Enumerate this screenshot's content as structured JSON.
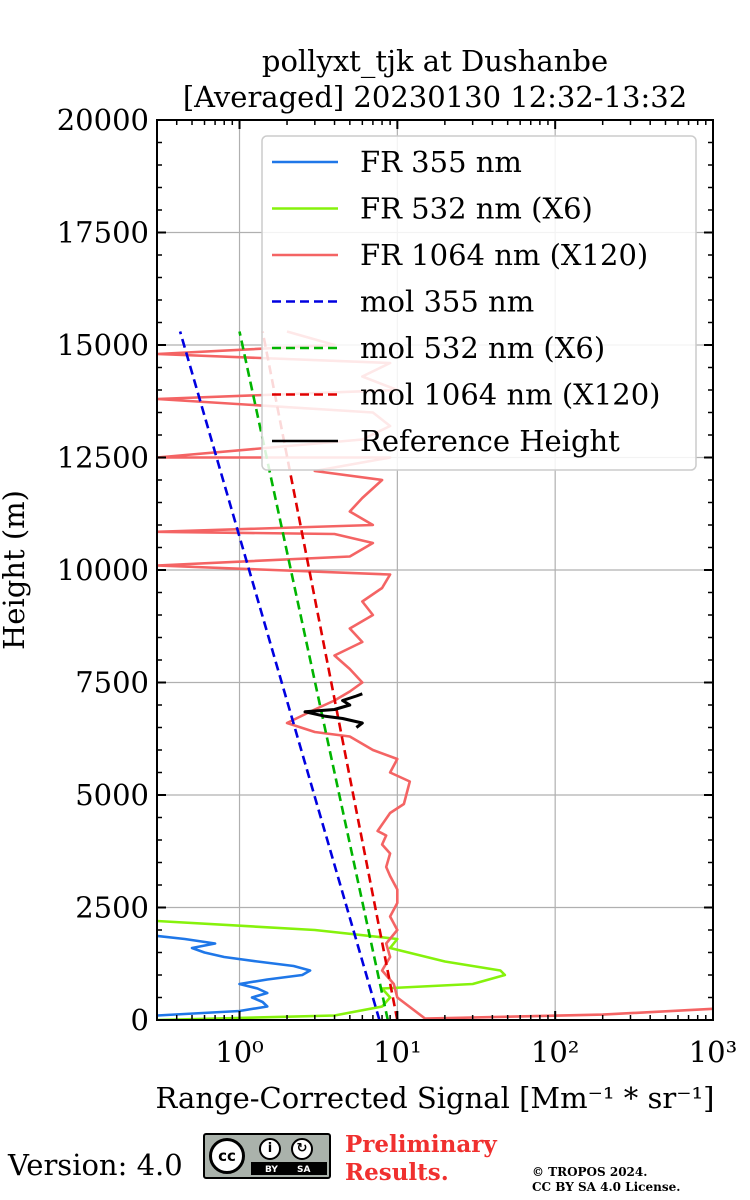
{
  "chart_data": {
    "type": "line",
    "title_line1": "pollyxt_tjk at Dushanbe",
    "title_line2": "[Averaged] 20230130 12:32-13:32",
    "xlabel": "Range-Corrected Signal [Mm⁻¹ * sr⁻¹]",
    "ylabel": "Height (m)",
    "x_scale": "log",
    "xlim": [
      0.3,
      1000
    ],
    "ylim": [
      0,
      20000
    ],
    "x_ticks": [
      {
        "value": 1,
        "label": "10⁰"
      },
      {
        "value": 10,
        "label": "10¹"
      },
      {
        "value": 100,
        "label": "10²"
      },
      {
        "value": 1000,
        "label": "10³"
      }
    ],
    "y_ticks": [
      0,
      2500,
      5000,
      7500,
      10000,
      12500,
      15000,
      17500,
      20000
    ],
    "grid": true,
    "legend_position": "upper-right",
    "series": [
      {
        "name": "FR 355 nm",
        "color": "#1f77e8",
        "style": "solid",
        "points": [
          [
            0.3,
            100
          ],
          [
            1.0,
            200
          ],
          [
            1.5,
            300
          ],
          [
            1.4,
            400
          ],
          [
            1.2,
            500
          ],
          [
            1.5,
            600
          ],
          [
            1.3,
            700
          ],
          [
            1.0,
            800
          ],
          [
            1.5,
            900
          ],
          [
            2.5,
            1000
          ],
          [
            2.8,
            1100
          ],
          [
            2.2,
            1200
          ],
          [
            1.3,
            1300
          ],
          [
            0.8,
            1400
          ],
          [
            0.6,
            1500
          ],
          [
            0.5,
            1600
          ],
          [
            0.7,
            1700
          ],
          [
            0.45,
            1800
          ],
          [
            0.3,
            1870
          ]
        ]
      },
      {
        "name": "FR 532 nm (X6)",
        "color": "#86f20c",
        "style": "solid",
        "points": [
          [
            0.3,
            0
          ],
          [
            4,
            100
          ],
          [
            8,
            300
          ],
          [
            9,
            500
          ],
          [
            8,
            700
          ],
          [
            30,
            800
          ],
          [
            48,
            1000
          ],
          [
            45,
            1100
          ],
          [
            20,
            1300
          ],
          [
            9,
            1600
          ],
          [
            10,
            1800
          ],
          [
            3,
            2000
          ],
          [
            0.3,
            2200
          ]
        ]
      },
      {
        "name": "FR 1064 nm (X120)",
        "color": "#f46464",
        "style": "solid",
        "points": [
          [
            1000,
            250
          ],
          [
            200,
            120
          ],
          [
            15,
            30
          ],
          [
            10,
            500
          ],
          [
            9.5,
            800
          ],
          [
            8,
            1100
          ],
          [
            9,
            1400
          ],
          [
            8.5,
            1700
          ],
          [
            10,
            2000
          ],
          [
            9,
            2300
          ],
          [
            10,
            2600
          ],
          [
            10,
            2900
          ],
          [
            9,
            3200
          ],
          [
            8.5,
            3400
          ],
          [
            9,
            3700
          ],
          [
            8,
            3900
          ],
          [
            8.5,
            4100
          ],
          [
            7.5,
            4200
          ],
          [
            9,
            4600
          ],
          [
            11,
            4800
          ],
          [
            12,
            5300
          ],
          [
            9,
            5500
          ],
          [
            10,
            5800
          ],
          [
            7,
            6000
          ],
          [
            5,
            6300
          ],
          [
            3,
            6400
          ],
          [
            2,
            6600
          ],
          [
            3,
            6900
          ],
          [
            4,
            7100
          ],
          [
            5,
            7300
          ],
          [
            6,
            7500
          ],
          [
            5,
            7800
          ],
          [
            4,
            8100
          ],
          [
            6,
            8400
          ],
          [
            5,
            8700
          ],
          [
            7,
            9000
          ],
          [
            6,
            9300
          ],
          [
            8,
            9600
          ],
          [
            9,
            9900
          ],
          [
            0.3,
            10100
          ],
          [
            5,
            10300
          ],
          [
            7,
            10600
          ],
          [
            4,
            10800
          ],
          [
            0.3,
            10850
          ],
          [
            7,
            11000
          ],
          [
            5,
            11300
          ],
          [
            6,
            11600
          ],
          [
            8,
            12000
          ],
          [
            3,
            12200
          ],
          [
            9,
            12500
          ],
          [
            0.3,
            12500
          ],
          [
            6,
            12900
          ],
          [
            9,
            13200
          ],
          [
            7,
            13500
          ],
          [
            0.3,
            13800
          ],
          [
            10,
            14000
          ],
          [
            6,
            14300
          ],
          [
            9,
            14600
          ],
          [
            0.3,
            14800
          ],
          [
            4,
            15000
          ],
          [
            2,
            15300
          ]
        ]
      },
      {
        "name": "mol 355 nm",
        "color": "#0000e0",
        "style": "dashed",
        "points": [
          [
            7.7,
            0
          ],
          [
            0.42,
            15300
          ]
        ]
      },
      {
        "name": "mol 532 nm (X6)",
        "color": "#00b400",
        "style": "dashed",
        "points": [
          [
            8.7,
            0
          ],
          [
            1.0,
            15300
          ]
        ]
      },
      {
        "name": "mol 1064 nm (X120)",
        "color": "#e00000",
        "style": "dashed",
        "points": [
          [
            10.0,
            0
          ],
          [
            1.4,
            15300
          ]
        ]
      },
      {
        "name": "Reference Height",
        "color": "#000000",
        "style": "solid",
        "points": [
          [
            5.5,
            6500
          ],
          [
            6.0,
            6600
          ],
          [
            4.5,
            6700
          ],
          [
            3.5,
            6750
          ],
          [
            2.6,
            6850
          ],
          [
            4.0,
            6900
          ],
          [
            5.0,
            7000
          ],
          [
            4.5,
            7100
          ],
          [
            5.5,
            7200
          ],
          [
            6.0,
            7250
          ]
        ]
      }
    ]
  },
  "footer": {
    "version": "Version: 4.0",
    "license_badge": {
      "cc": "cc",
      "by": "BY",
      "sa": "SA"
    },
    "preliminary_line1": "Preliminary",
    "preliminary_line2": "Results.",
    "copyright_line1": "© TROPOS 2024.",
    "copyright_line2": "CC BY SA 4.0 License."
  }
}
